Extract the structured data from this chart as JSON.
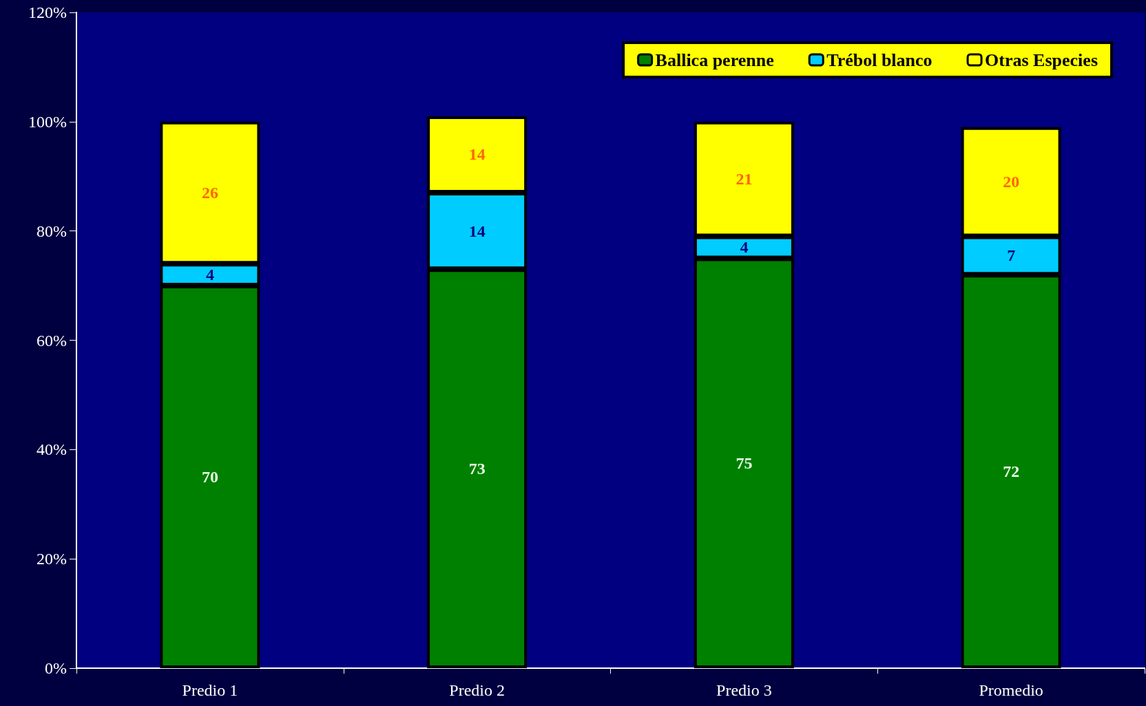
{
  "chart_data": {
    "type": "bar",
    "stacked": true,
    "data_labels": true,
    "legend": "top right",
    "grid": false,
    "categories": [
      "Predio 1",
      "Predio 2",
      "Predio 3",
      "Promedio"
    ],
    "series": [
      {
        "name": "Ballica perenne",
        "color": "#008000",
        "values": [
          70,
          73,
          75,
          72
        ]
      },
      {
        "name": "Trébol blanco",
        "color": "#00ccff",
        "values": [
          4,
          14,
          4,
          7
        ]
      },
      {
        "name": "Otras Especies",
        "color": "#ffff00",
        "values": [
          26,
          14,
          21,
          20
        ]
      }
    ],
    "ylim": [
      0,
      120
    ],
    "yticks": [
      {
        "value": 0,
        "label": "0%"
      },
      {
        "value": 20,
        "label": "20%"
      },
      {
        "value": 40,
        "label": "40%"
      },
      {
        "value": 60,
        "label": "60%"
      },
      {
        "value": 80,
        "label": "80%"
      },
      {
        "value": 100,
        "label": "100%"
      },
      {
        "value": 120,
        "label": "120%"
      }
    ]
  }
}
